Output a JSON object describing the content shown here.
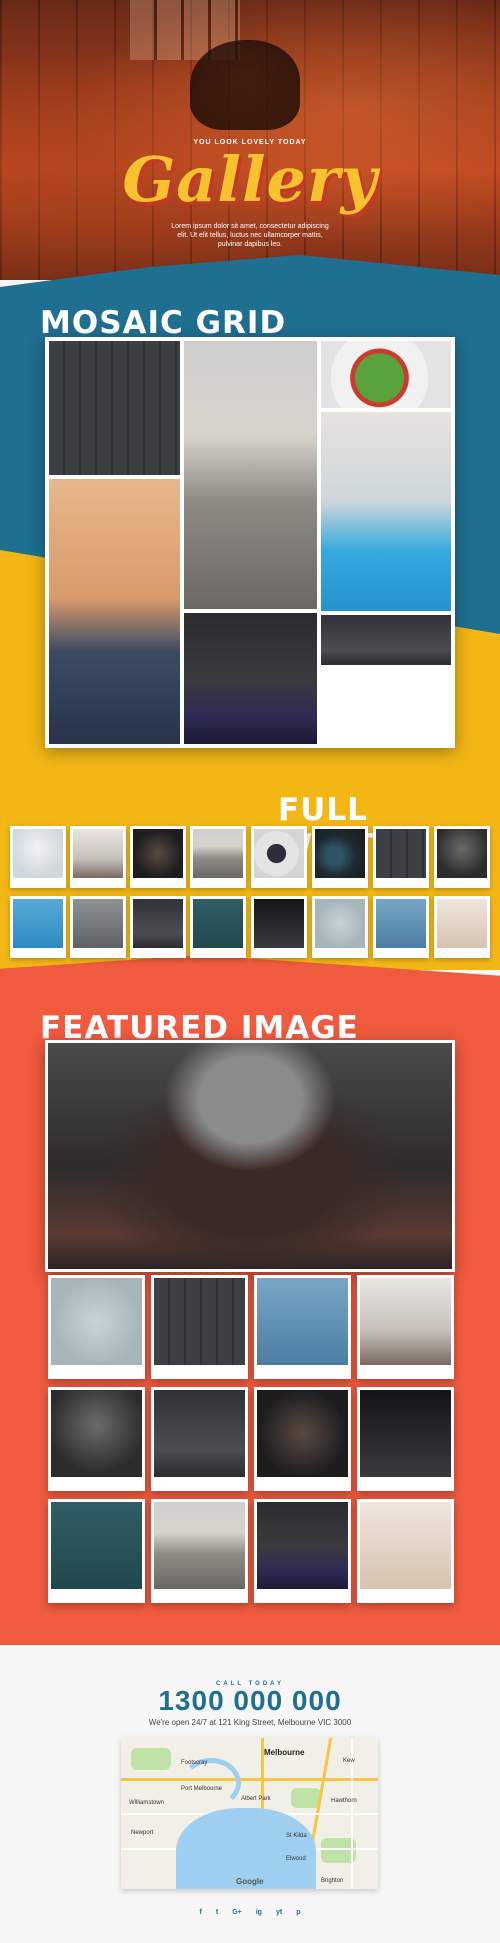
{
  "hero": {
    "tagline": "YOU LOOK LOVELY TODAY",
    "title": "Gallery",
    "description": "Lorem ipsum dolor sit amet, consectetur adipiscing elit. Ut elit tellus, luctus nec ullamcorper mattis, pulvinar dapibus leo."
  },
  "sections": {
    "mosaic": "MOSAIC GRID",
    "fullwidth": "FULL WIDTH",
    "featured": "FEATURED IMAGE"
  },
  "colors": {
    "blue": "#1f6f91",
    "yellow": "#f3b715",
    "red": "#f05a3e",
    "title_yellow": "#f7c22e"
  },
  "contact": {
    "call_label": "CALL TODAY",
    "phone": "1300 000 000",
    "address": "We're open 24/7 at 121 King Street, Melbourne VIC 3000"
  },
  "map": {
    "city": "Melbourne",
    "labels": [
      "Williamstown",
      "Port Melbourne",
      "Albert Park",
      "Elwood",
      "Brighton",
      "St Kilda",
      "Newport",
      "Footscray",
      "Kew",
      "Hawthorn"
    ],
    "attribution": "Google"
  },
  "social": [
    "f",
    "t",
    "G+",
    "ig",
    "yt",
    "p"
  ]
}
